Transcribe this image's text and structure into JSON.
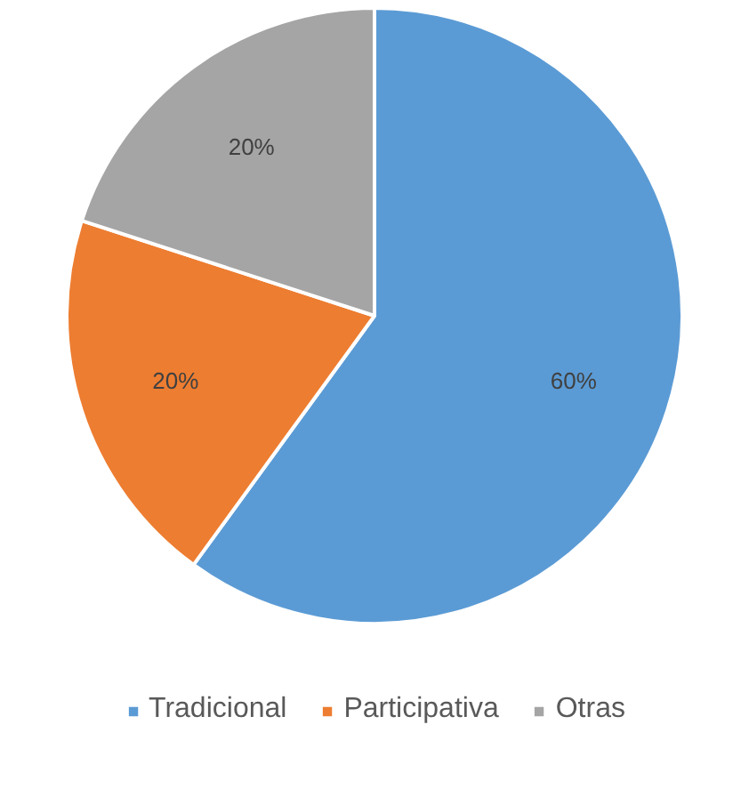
{
  "chart_data": {
    "type": "pie",
    "categories": [
      "Tradicional",
      "Participativa",
      "Otras"
    ],
    "values": [
      60,
      20,
      20
    ],
    "colors": [
      "#5b9bd5",
      "#ed7d31",
      "#a5a5a5"
    ],
    "value_labels": [
      "60%",
      "20%",
      "20%"
    ],
    "legend": "bottom"
  }
}
